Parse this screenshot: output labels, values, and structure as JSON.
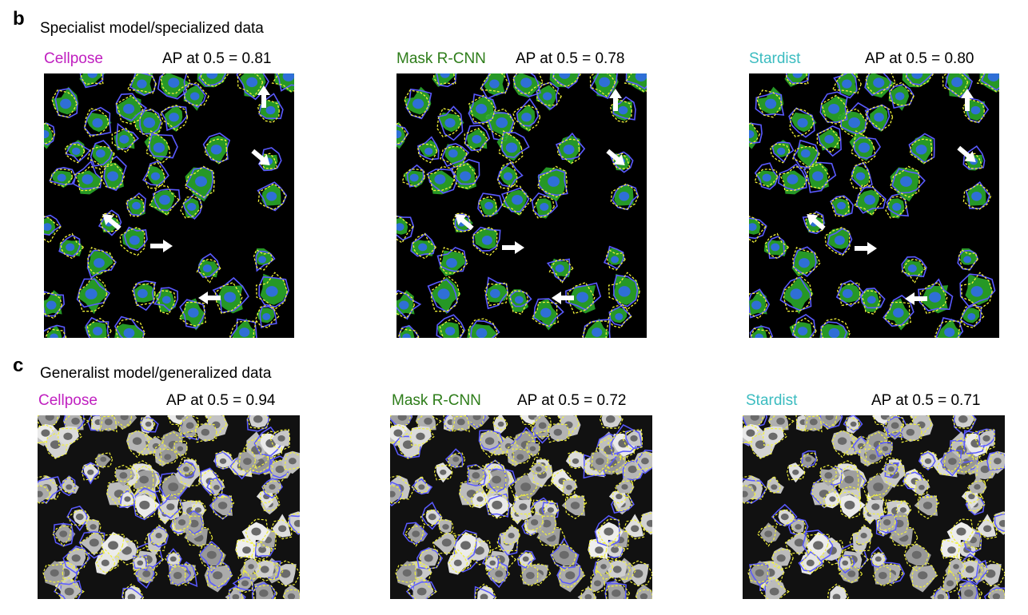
{
  "panel_b": {
    "letter": "b",
    "title": "Specialist model/specialized data",
    "models": [
      {
        "name": "Cellpose",
        "ap": "AP at 0.5 = 0.81",
        "color": "#c020c0"
      },
      {
        "name": "Mask R-CNN",
        "ap": "AP at 0.5 = 0.78",
        "color": "#2e7d1a"
      },
      {
        "name": "Stardist",
        "ap": "AP at 0.5 = 0.80",
        "color": "#3bbcc0"
      }
    ]
  },
  "panel_c": {
    "letter": "c",
    "title": "Generalist model/generalized data",
    "models": [
      {
        "name": "Cellpose",
        "ap": "AP at 0.5 = 0.94",
        "color": "#c020c0"
      },
      {
        "name": "Mask R-CNN",
        "ap": "AP at 0.5 = 0.72",
        "color": "#2e7d1a"
      },
      {
        "name": "Stardist",
        "ap": "AP at 0.5 = 0.71",
        "color": "#3bbcc0"
      }
    ]
  },
  "colors": {
    "ground_truth_outline": "#f2f23a",
    "prediction_outline": "#5a5aff",
    "cell_fill": "#2aa82a",
    "nucleus_fill": "#2f6fd6",
    "gray_cell_fill": "#bdbdbd"
  }
}
